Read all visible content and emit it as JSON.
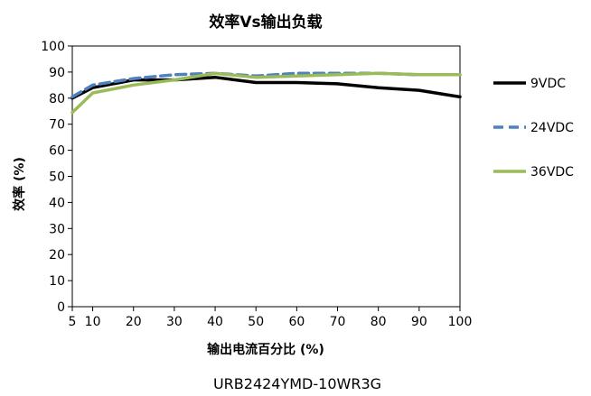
{
  "chart_data": {
    "type": "line",
    "title": "效率Vs输出负载",
    "xlabel": "输出电流百分比 (%)",
    "ylabel": "效率 (%)",
    "caption": "URB2424YMD-10WR3G",
    "xlim": [
      5,
      100
    ],
    "ylim": [
      0,
      100
    ],
    "x_ticks": [
      5,
      10,
      20,
      30,
      40,
      50,
      60,
      70,
      80,
      90,
      100
    ],
    "y_ticks": [
      0,
      10,
      20,
      30,
      40,
      50,
      60,
      70,
      80,
      90,
      100
    ],
    "grid": false,
    "legend_position": "right",
    "x": [
      5,
      10,
      20,
      30,
      40,
      50,
      60,
      70,
      80,
      90,
      100
    ],
    "series": [
      {
        "name": "9VDC",
        "color": "#000000",
        "dash": "solid",
        "values": [
          80,
          84,
          87,
          87,
          88,
          86,
          86,
          85.5,
          84,
          83,
          80.5
        ]
      },
      {
        "name": "24VDC",
        "color": "#4f81bd",
        "dash": "dashed",
        "values": [
          80.5,
          85,
          87.5,
          89,
          89.5,
          88.5,
          89.5,
          89.5,
          89.5,
          89,
          89
        ]
      },
      {
        "name": "36VDC",
        "color": "#9bbb59",
        "dash": "solid",
        "values": [
          74.5,
          82,
          85,
          87,
          89.5,
          88,
          88.5,
          89,
          89.5,
          89,
          89
        ]
      }
    ]
  }
}
